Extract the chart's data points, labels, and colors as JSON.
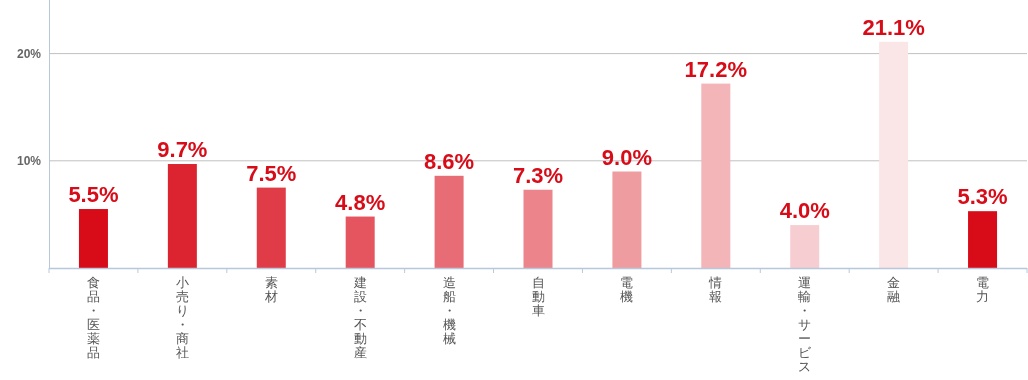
{
  "chart_data": {
    "type": "bar",
    "categories": [
      "食品・医薬品",
      "小売り・商社",
      "素材",
      "建設・不動産",
      "造船・機械",
      "自動車",
      "電機",
      "情報",
      "運輸・サービス",
      "金融",
      "電力"
    ],
    "values": [
      5.5,
      9.7,
      7.5,
      4.8,
      8.6,
      7.3,
      9.0,
      17.2,
      4.0,
      21.1,
      5.3
    ],
    "value_labels": [
      "5.5%",
      "9.7%",
      "7.5%",
      "4.8%",
      "8.6%",
      "7.3%",
      "9.0%",
      "17.2%",
      "4.0%",
      "21.1%",
      "5.3%"
    ],
    "colors": [
      "#d80c18",
      "#dc2430",
      "#e03c48",
      "#e45560",
      "#e86c75",
      "#ec848b",
      "#ef9ca1",
      "#f3b5b8",
      "#f6cdd0",
      "#fae5e7",
      "#d80c18"
    ],
    "ylim": [
      0,
      25
    ],
    "yticks": [
      {
        "value": 10,
        "label": "10%"
      },
      {
        "value": 20,
        "label": "20%"
      }
    ],
    "grid": "y"
  }
}
